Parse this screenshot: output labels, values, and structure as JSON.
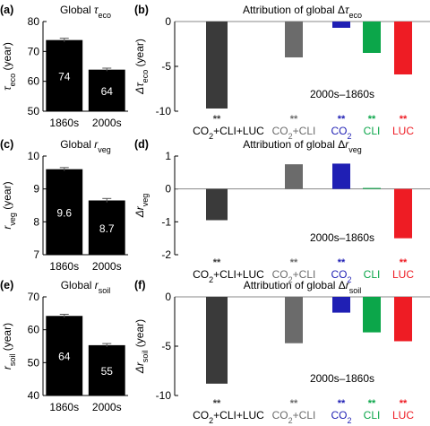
{
  "figure": {
    "panel_labels": [
      "(a)",
      "(b)",
      "(c)",
      "(d)",
      "(e)",
      "(f)"
    ],
    "period_note": "2000s–1860s"
  },
  "chart_data": [
    {
      "id": "a",
      "type": "bar",
      "title": "Global τeco",
      "title_main": "Global ",
      "title_symbol": "τ",
      "title_sub": "eco",
      "ylabel_symbol": "τ",
      "ylabel_sub": "eco",
      "ylabel_unit": " (year)",
      "ylim": [
        50,
        80
      ],
      "yticks": [
        50,
        60,
        70,
        80
      ],
      "categories": [
        "1860s",
        "2000s"
      ],
      "values": [
        73.8,
        63.9
      ],
      "errors": [
        0.6,
        0.5
      ],
      "value_labels": [
        "74",
        "64"
      ],
      "bar_color": "#000000"
    },
    {
      "id": "b",
      "type": "bar",
      "title": "Attribution of global Δτeco",
      "title_main": "Attribution of global Δ",
      "title_symbol": "τ",
      "title_sub": "eco",
      "ylabel_symbol": "Δτ",
      "ylabel_sub": "eco",
      "ylabel_unit": " (year)",
      "ylim": [
        -10,
        0
      ],
      "yticks": [
        -10,
        -5,
        0
      ],
      "categories": [
        "CO2+CLI+LUC",
        "CO2+CLI",
        "CO2",
        "CLI",
        "LUC"
      ],
      "values": [
        -9.7,
        -4.0,
        -0.7,
        -3.5,
        -5.9
      ],
      "significance": [
        "**",
        "**",
        "**",
        "**",
        "**"
      ],
      "colors": [
        "#3a3a3a",
        "#6b6b6b",
        "#1f1fb4",
        "#0ca64a",
        "#ee1c24"
      ],
      "annotation": "2000s–1860s"
    },
    {
      "id": "c",
      "type": "bar",
      "title": "Global rveg",
      "title_main": "Global ",
      "title_symbol": "r",
      "title_sub": "veg",
      "ylabel_symbol": "r",
      "ylabel_sub": "veg",
      "ylabel_unit": " (year)",
      "ylim": [
        7,
        10
      ],
      "yticks": [
        7,
        8,
        9,
        10
      ],
      "categories": [
        "1860s",
        "2000s"
      ],
      "values": [
        9.6,
        8.65
      ],
      "errors": [
        0.05,
        0.06
      ],
      "value_labels": [
        "9.6",
        "8.7"
      ],
      "bar_color": "#000000"
    },
    {
      "id": "d",
      "type": "bar",
      "title": "Attribution of global Δrveg",
      "title_main": "Attribution of global Δ",
      "title_symbol": "r",
      "title_sub": "veg",
      "ylabel_symbol": "Δr",
      "ylabel_sub": "veg",
      "ylabel_unit": "",
      "ylim": [
        -2,
        1
      ],
      "yticks": [
        -2,
        -1,
        0,
        1
      ],
      "categories": [
        "CO2+CLI+LUC",
        "CO2+CLI",
        "CO2",
        "CLI",
        "LUC"
      ],
      "values": [
        -0.95,
        0.75,
        0.77,
        0.03,
        -1.5
      ],
      "significance": [
        "**",
        "**",
        "**",
        "",
        "**"
      ],
      "colors": [
        "#3a3a3a",
        "#6b6b6b",
        "#1f1fb4",
        "#0ca64a",
        "#ee1c24"
      ],
      "annotation": "2000s–1860s"
    },
    {
      "id": "e",
      "type": "bar",
      "title": "Global rsoil",
      "title_main": "Global ",
      "title_symbol": "r",
      "title_sub": "soil",
      "ylabel_symbol": "r",
      "ylabel_sub": "soil",
      "ylabel_unit": " (year)",
      "ylim": [
        40,
        70
      ],
      "yticks": [
        40,
        50,
        60,
        70
      ],
      "categories": [
        "1860s",
        "2000s"
      ],
      "values": [
        64.2,
        55.3
      ],
      "errors": [
        0.5,
        0.5
      ],
      "value_labels": [
        "64",
        "55"
      ],
      "bar_color": "#000000"
    },
    {
      "id": "f",
      "type": "bar",
      "title": "Attribution of global Δrsoil",
      "title_main": "Attribution of global Δ",
      "title_symbol": "r",
      "title_sub": "soil",
      "ylabel_symbol": "Δr",
      "ylabel_sub": "soil",
      "ylabel_unit": " (year)",
      "ylim": [
        -10,
        0
      ],
      "yticks": [
        -10,
        -5,
        0
      ],
      "categories": [
        "CO2+CLI+LUC",
        "CO2+CLI",
        "CO2",
        "CLI",
        "LUC"
      ],
      "values": [
        -8.8,
        -4.7,
        -1.6,
        -3.6,
        -4.5
      ],
      "significance": [
        "**",
        "**",
        "**",
        "**",
        "**"
      ],
      "colors": [
        "#3a3a3a",
        "#6b6b6b",
        "#1f1fb4",
        "#0ca64a",
        "#ee1c24"
      ],
      "annotation": "2000s–1860s"
    }
  ]
}
